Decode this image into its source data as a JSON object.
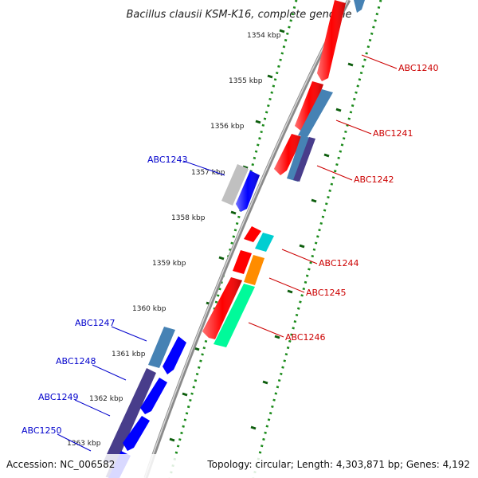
{
  "title": "Bacillus clausii KSM-K16, complete genome",
  "footer": {
    "accession": "Accession: NC_006582",
    "summary": "Topology: circular; Length: 4,303,871 bp; Genes: 4,192"
  },
  "colors": {
    "backbone": "#8a8a8a",
    "forward_label": "#0000cc",
    "reverse_label": "#cc0000",
    "tick_dots": "#1a8a1a",
    "tick_marks": "#0d5e0d"
  },
  "ticks": [
    "1354 kbp",
    "1355 kbp",
    "1356 kbp",
    "1357 kbp",
    "1358 kbp",
    "1359 kbp",
    "1360 kbp",
    "1361 kbp",
    "1362 kbp",
    "1363 kbp"
  ],
  "genes": [
    {
      "id": "ABC1240",
      "strand": "reverse",
      "color": "#ff0000",
      "labeled": true
    },
    {
      "id": "ABC1241",
      "strand": "reverse",
      "color": "#ff0000",
      "labeled": true
    },
    {
      "id": "ABC1242",
      "strand": "reverse",
      "color": "#4682b4",
      "labeled": true
    },
    {
      "id": "ABC1243",
      "strand": "forward",
      "color": "#0000ff",
      "labeled": true
    },
    {
      "id": "ABC1244",
      "strand": "reverse",
      "color": "#00ced1",
      "labeled": true
    },
    {
      "id": "ABC1245",
      "strand": "reverse",
      "color": "#ff8c00",
      "labeled": true
    },
    {
      "id": "ABC1246",
      "strand": "reverse",
      "color": "#00fa9a",
      "labeled": true
    },
    {
      "id": "ABC1247",
      "strand": "forward",
      "color": "#4682b4",
      "labeled": true
    },
    {
      "id": "ABC1248",
      "strand": "forward",
      "color": "#483d8b",
      "labeled": true
    },
    {
      "id": "ABC1249",
      "strand": "forward",
      "color": "#0000ff",
      "labeled": true
    },
    {
      "id": "ABC1250",
      "strand": "forward",
      "color": "#0000ff",
      "labeled": true
    }
  ],
  "features": [
    {
      "name": "gc-feature",
      "color": "#ff0000"
    },
    {
      "name": "gc-feature",
      "color": "#483d8b"
    },
    {
      "name": "gc-feature",
      "color": "#c0c0c0"
    },
    {
      "name": "gc-feature",
      "color": "#0000ff"
    }
  ]
}
